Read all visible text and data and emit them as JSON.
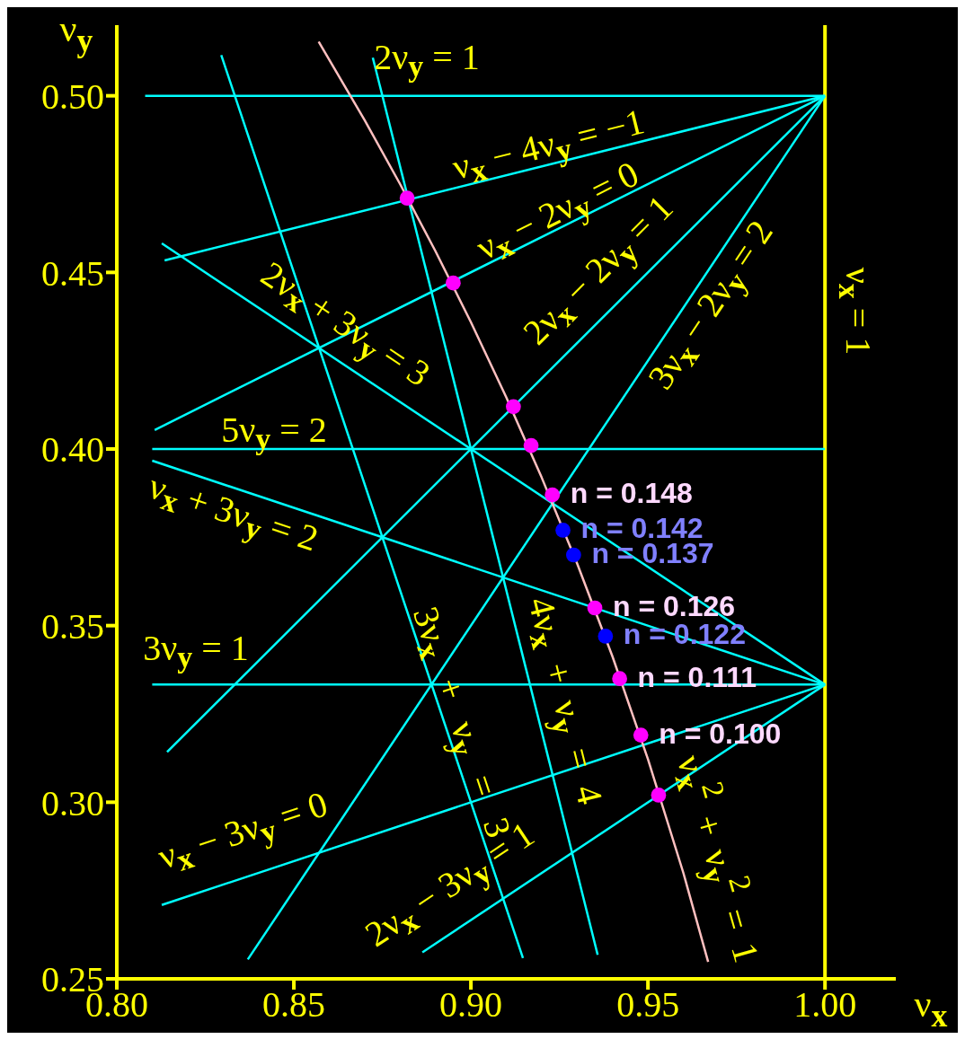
{
  "chart_data": {
    "type": "line",
    "xlabel": "ν$_{x}$",
    "ylabel": "ν$_{y}$",
    "xlim": [
      0.8,
      1.02
    ],
    "ylim": [
      0.25,
      0.52
    ],
    "xticks": [
      {
        "value": 0.8,
        "label": "0.80"
      },
      0.85,
      {
        "value": 0.9,
        "label": "0.90"
      },
      0.95,
      {
        "value": 1.0,
        "label": "1.00"
      }
    ],
    "yticks": [
      0.25,
      {
        "value": 0.3,
        "label": "0.30"
      },
      0.35,
      {
        "value": 0.4,
        "label": "0.40"
      },
      0.45,
      {
        "value": 0.5,
        "label": "0.50"
      }
    ],
    "grid": false,
    "series": [
      {
        "color": "#00ffff",
        "x": [
          0.808,
          1.0
        ],
        "values": [
          0.5,
          0.5
        ]
      },
      {
        "color": "#00ffff",
        "x": [
          0.8135,
          1.0
        ],
        "values": [
          0.4534,
          0.5
        ]
      },
      {
        "color": "#00ffff",
        "x": [
          0.8107,
          1.0
        ],
        "values": [
          0.4054,
          0.5
        ]
      },
      {
        "color": "#00ffff",
        "x": [
          0.8142,
          1.0
        ],
        "values": [
          0.3142,
          0.5
        ]
      },
      {
        "color": "#00ffff",
        "x": [
          0.837,
          1.0
        ],
        "values": [
          0.2555,
          0.5
        ]
      },
      {
        "color": "#00ffff",
        "x": [
          0.8127,
          1.0
        ],
        "values": [
          0.4582,
          0.3333
        ]
      },
      {
        "color": "#00ffff",
        "x": [
          0.81,
          1.0
        ],
        "values": [
          0.4,
          0.4
        ]
      },
      {
        "color": "#00ffff",
        "x": [
          0.81,
          1.0
        ],
        "values": [
          0.3967,
          0.3333
        ]
      },
      {
        "color": "#00ffff",
        "x": [
          0.81,
          1.0
        ],
        "values": [
          0.3333,
          0.3333
        ]
      },
      {
        "color": "#00ffff",
        "x": [
          0.8127,
          1.0
        ],
        "values": [
          0.2709,
          0.3333
        ]
      },
      {
        "color": "#00ffff",
        "x": [
          0.8863,
          1.0
        ],
        "values": [
          0.2575,
          0.3333
        ]
      },
      {
        "color": "#00ffff",
        "x": [
          0.8295,
          0.9147
        ],
        "values": [
          0.5115,
          0.2559
        ]
      },
      {
        "color": "#00ffff",
        "x": [
          0.8723,
          0.9358
        ],
        "values": [
          0.5108,
          0.2568
        ]
      },
      {
        "color": "#ffc0c0",
        "x": [
          0.857,
          0.87,
          0.88,
          0.89,
          0.9,
          0.91,
          0.92,
          0.93,
          0.94,
          0.95,
          0.96,
          0.967
        ],
        "values": [
          0.5153,
          0.4931,
          0.475,
          0.456,
          0.4359,
          0.4146,
          0.3919,
          0.3676,
          0.3412,
          0.3122,
          0.28,
          0.2548
        ]
      },
      {
        "type": "scatter",
        "marker": "circle",
        "color": "#ff00ff",
        "x": [
          0.882,
          0.895,
          0.912,
          0.917,
          0.923,
          0.935,
          0.942,
          0.948,
          0.953
        ],
        "values": [
          0.471,
          0.447,
          0.412,
          0.401,
          0.387,
          0.355,
          0.335,
          0.319,
          0.302
        ]
      },
      {
        "type": "scatter",
        "marker": "circle",
        "color": "#0000ff",
        "x": [
          0.926,
          0.929,
          0.938
        ],
        "values": [
          0.377,
          0.37,
          0.347
        ]
      }
    ],
    "ref_lines": [
      {
        "axis": "x",
        "value": 1.0,
        "label": "ν$_{x}$ = 1",
        "color": "#ffff00"
      }
    ],
    "annotations": [
      "2ν$_{y}$ = 1",
      "ν$_{x}$ − 4ν$_{y}$ = −1",
      "ν$_{x}$ − 2ν$_{y}$ = 0",
      "2ν$_{x}$ − 2ν$_{y}$ = 1",
      "3ν$_{x}$ − 2ν$_{y}$ = 2",
      "2ν$_{x}$ + 3ν$_{y}$ = 3",
      "5ν$_{y}$ = 2",
      "ν$_{x}$ + 3ν$_{y}$ = 2",
      "3ν$_{y}$ = 1",
      "3ν$_{x}$ + ν$_{y}$ = 3",
      "4ν$_{x}$ + ν$_{y}$ = 4",
      "ν$_{x}$ − 3ν$_{y}$ = 0",
      "2ν$_{x}$ − 3ν$_{y}$ = 1",
      "ν$_{x}$$^{2}$ + ν$_{y}$$^{2}$ = 1",
      {
        "text": "n = 0.148",
        "x": 0.923,
        "y": 0.387
      },
      {
        "text": "n = 0.142",
        "x": 0.926,
        "y": 0.377
      },
      {
        "text": "n = 0.137",
        "x": 0.929,
        "y": 0.37
      },
      {
        "text": "n = 0.126",
        "x": 0.935,
        "y": 0.355
      },
      {
        "text": "n = 0.122",
        "x": 0.938,
        "y": 0.347
      },
      {
        "text": "n = 0.111",
        "x": 0.942,
        "y": 0.335
      },
      {
        "text": "n = 0.100",
        "x": 0.948,
        "y": 0.319
      }
    ]
  }
}
